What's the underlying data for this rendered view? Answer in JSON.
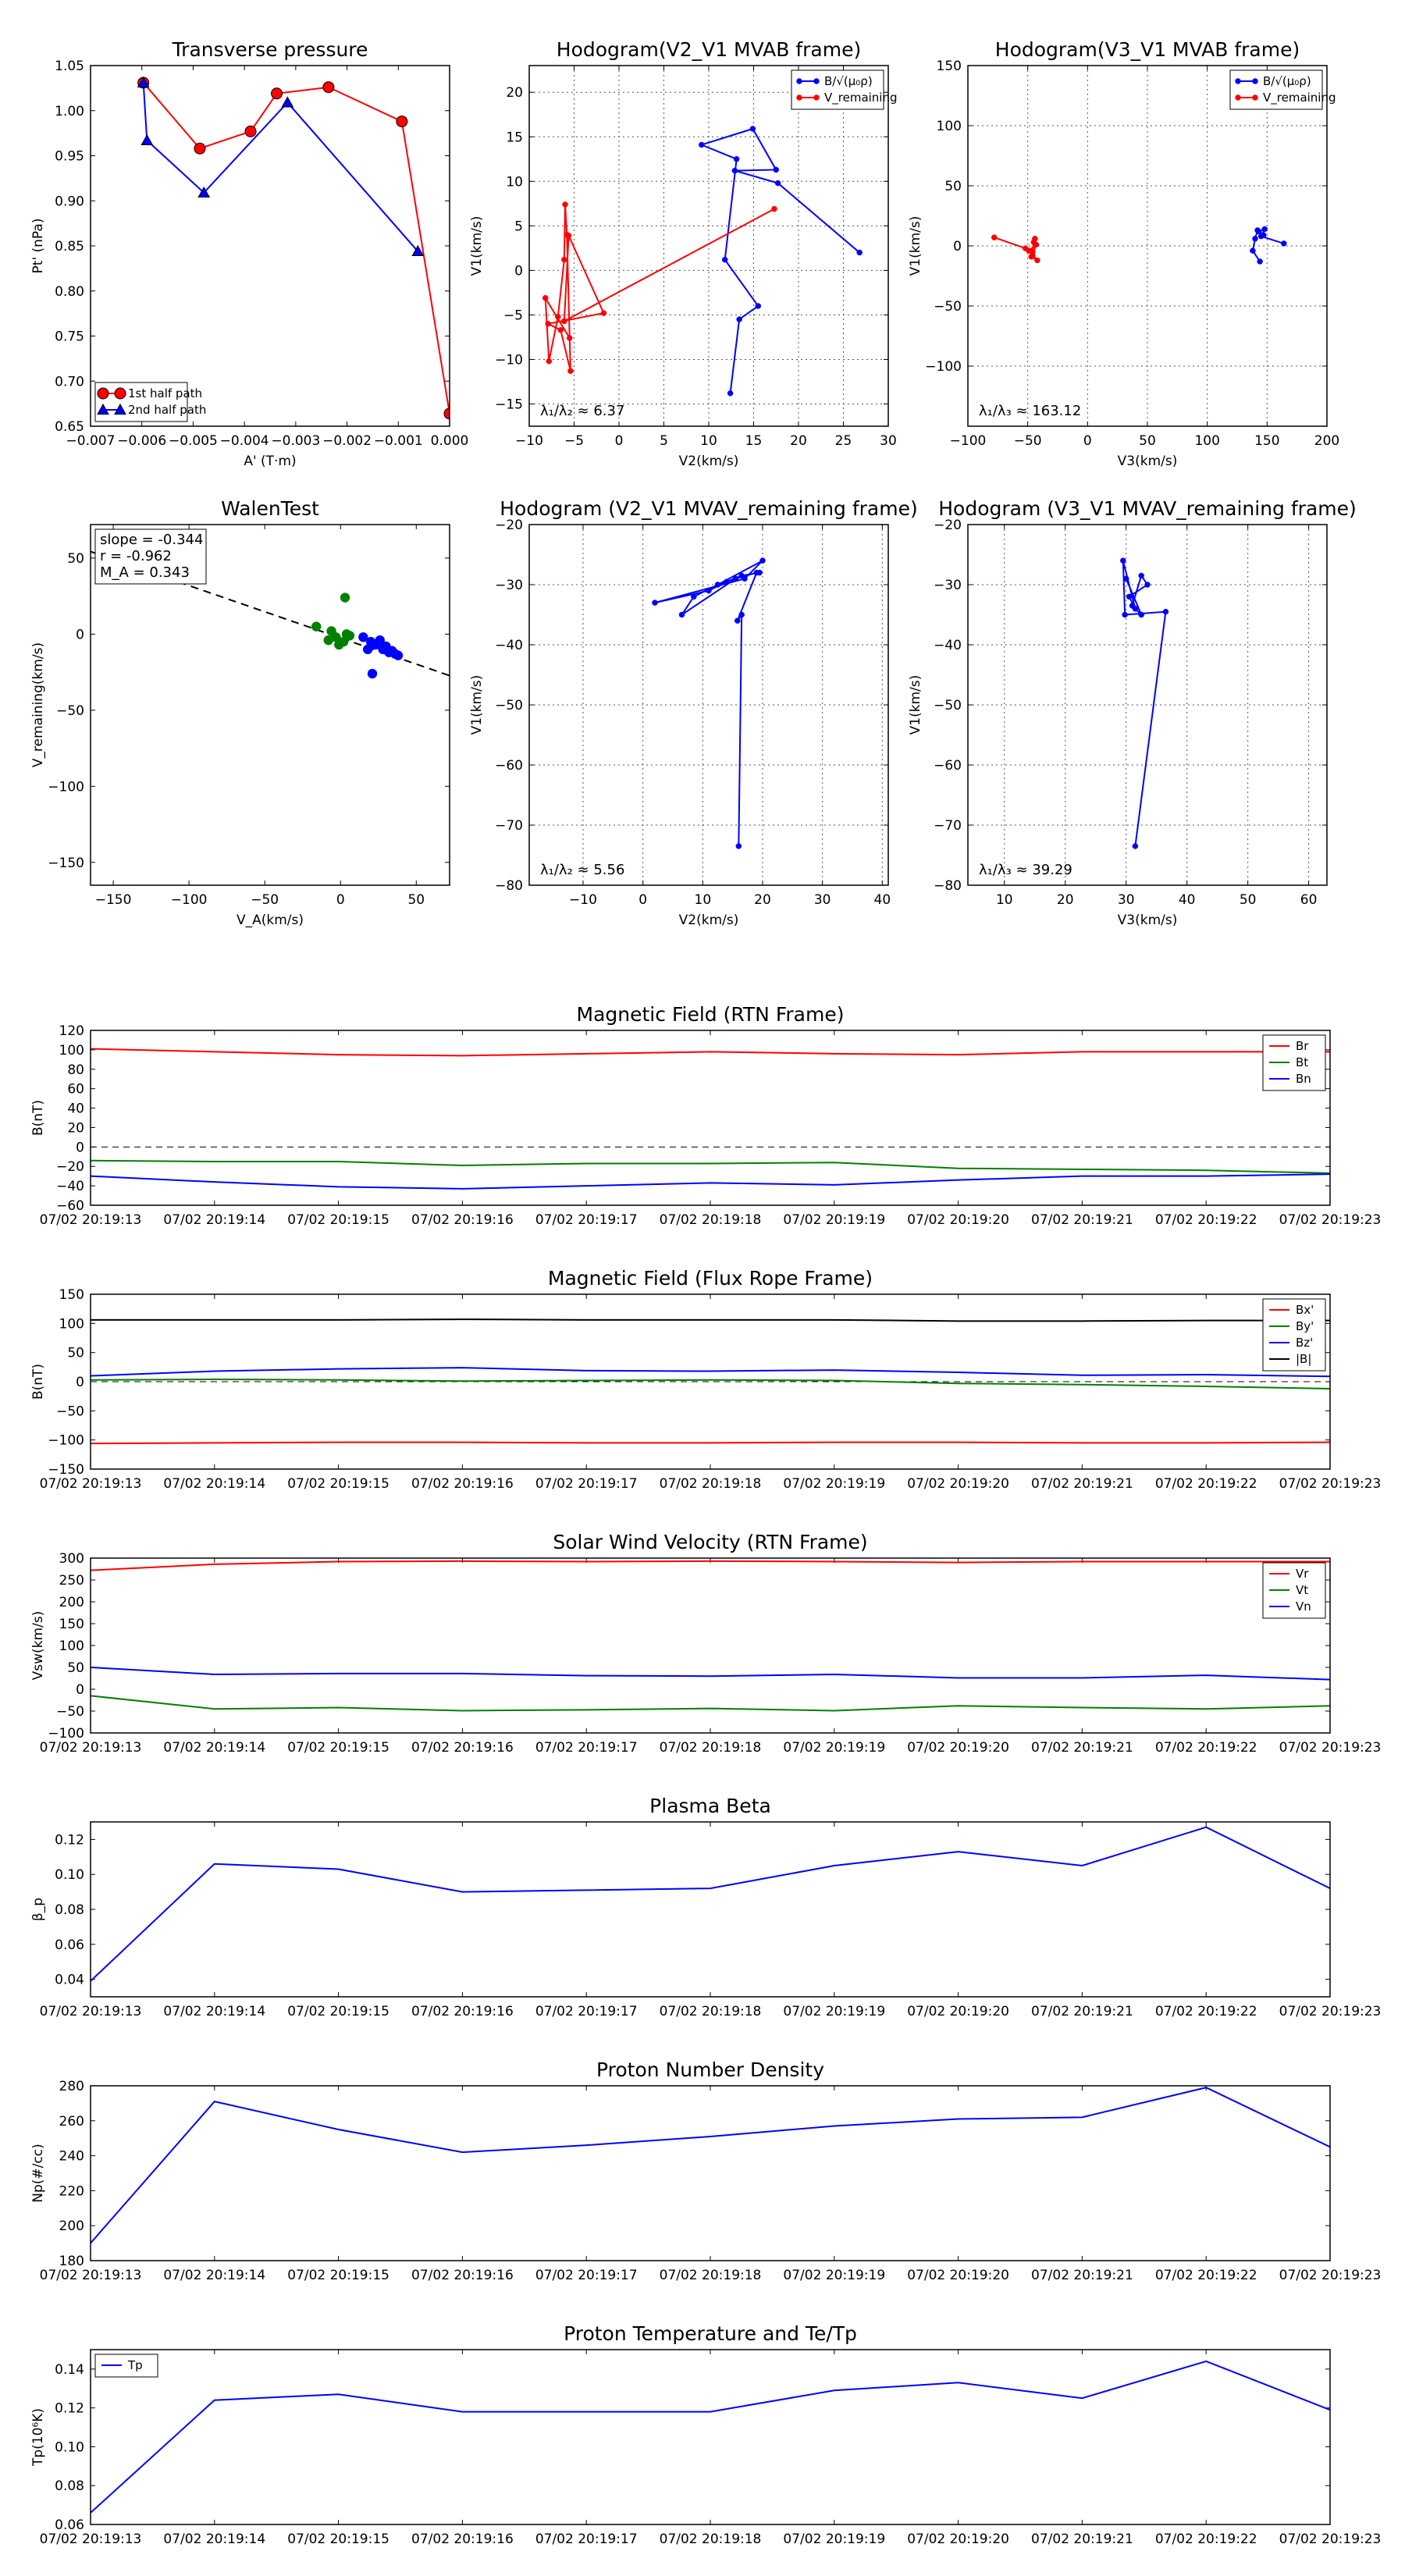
{
  "colors": {
    "red": "#ff0000",
    "blue": "#0000ff",
    "green": "#008000",
    "black": "#000000",
    "grid": "#555555"
  },
  "chart_data": [
    {
      "id": "tp",
      "type": "line",
      "title": "Transverse pressure",
      "xlabel": "A' (T·m)",
      "ylabel": "Pt' (nPa)",
      "xlim": [
        -0.007,
        0.0
      ],
      "ylim": [
        0.65,
        1.05
      ],
      "xticks": [
        -0.007,
        -0.006,
        -0.005,
        -0.004,
        -0.003,
        -0.002,
        -0.001,
        0.0
      ],
      "xtick_labels": [
        "−0.007",
        "−0.006",
        "−0.005",
        "−0.004",
        "−0.003",
        "−0.002",
        "−0.001",
        "0.000"
      ],
      "yticks": [
        0.65,
        0.7,
        0.75,
        0.8,
        0.85,
        0.9,
        0.95,
        1.0,
        1.05
      ],
      "ytick_labels": [
        "0.65",
        "0.70",
        "0.75",
        "0.80",
        "0.85",
        "0.90",
        "0.95",
        "1.00",
        "1.05"
      ],
      "grid": false,
      "legend": "bottom-left",
      "series": [
        {
          "name": "1st half path",
          "color": "#ff0000",
          "marker": "circle",
          "x": [
            -0.00597,
            -0.00487,
            -0.00388,
            -0.00337,
            -0.00236,
            -0.00093,
            0.0
          ],
          "y": [
            1.031,
            0.958,
            0.977,
            1.019,
            1.026,
            0.988,
            0.664
          ]
        },
        {
          "name": "2nd half path",
          "color": "#0000ff",
          "marker": "triangle",
          "x": [
            -0.00597,
            -0.0059,
            -0.00479,
            -0.00316,
            -0.00062
          ],
          "y": [
            1.031,
            0.967,
            0.909,
            1.009,
            0.844
          ]
        }
      ]
    },
    {
      "id": "h21",
      "type": "line",
      "title": "Hodogram(V2_V1 MVAB frame)",
      "xlabel": "V2(km/s)",
      "ylabel": "V1(km/s)",
      "xlim": [
        -10,
        30
      ],
      "ylim": [
        -17.5,
        23
      ],
      "xticks": [
        -10,
        -5,
        0,
        5,
        10,
        15,
        20,
        25,
        30
      ],
      "xtick_labels": [
        "−10",
        "−5",
        "0",
        "5",
        "10",
        "15",
        "20",
        "25",
        "30"
      ],
      "yticks": [
        -15,
        -10,
        -5,
        0,
        5,
        10,
        15,
        20
      ],
      "ytick_labels": [
        "−15",
        "−10",
        "−5",
        "0",
        "5",
        "10",
        "15",
        "20"
      ],
      "grid": true,
      "legend": "top-right",
      "annotation": "λ₁/λ₂ ≈ 6.37",
      "series": [
        {
          "name": "B/√(μ₀ρ)",
          "color": "#0000ff",
          "marker": "dot",
          "x": [
            12.4,
            13.4,
            15.5,
            11.8,
            13.1,
            9.2,
            14.9,
            17.5,
            12.9,
            17.7,
            26.8
          ],
          "y": [
            -13.8,
            -5.5,
            -4.0,
            1.2,
            12.5,
            14.1,
            15.9,
            11.3,
            11.2,
            9.8,
            2.0
          ]
        },
        {
          "name": "V_remaining",
          "color": "#ff0000",
          "marker": "dot",
          "x": [
            -5.5,
            -8.2,
            -7.8,
            -6.8,
            -6.1,
            -6.0,
            -5.8,
            -5.4,
            -6.5,
            -7.9,
            -1.7,
            -5.6,
            -6.1,
            17.3
          ],
          "y": [
            -7.6,
            -3.1,
            -10.2,
            -5.2,
            1.2,
            7.4,
            4.0,
            -11.3,
            -6.7,
            -6.0,
            -4.8,
            3.9,
            -5.7,
            6.9
          ]
        }
      ]
    },
    {
      "id": "h31",
      "type": "line",
      "title": "Hodogram(V3_V1 MVAB frame)",
      "xlabel": "V3(km/s)",
      "ylabel": "V1(km/s)",
      "xlim": [
        -100,
        200
      ],
      "ylim": [
        -150,
        150
      ],
      "xticks": [
        -100,
        -50,
        0,
        50,
        100,
        150,
        200
      ],
      "xtick_labels": [
        "−100",
        "−50",
        "0",
        "50",
        "100",
        "150",
        "200"
      ],
      "yticks": [
        -100,
        -50,
        0,
        50,
        100,
        150
      ],
      "ytick_labels": [
        "−100",
        "−50",
        "0",
        "50",
        "100",
        "150"
      ],
      "grid": true,
      "legend": "top-right",
      "annotation": "λ₁/λ₃ ≈ 163.12",
      "series": [
        {
          "name": "B/√(μ₀ρ)",
          "color": "#0000ff",
          "marker": "dot",
          "x": [
            144,
            138,
            140,
            142,
            147,
            143,
            148,
            145,
            164
          ],
          "y": [
            -13,
            -4,
            6,
            13,
            9,
            12,
            14,
            8,
            2
          ]
        },
        {
          "name": "V_remaining",
          "color": "#ff0000",
          "marker": "dot",
          "x": [
            -78,
            -52,
            -46,
            -45,
            -44,
            -47,
            -42,
            -49,
            -43,
            -46
          ],
          "y": [
            7,
            -2,
            -5,
            3,
            6,
            -9,
            -12,
            -4,
            1,
            -8
          ]
        }
      ]
    },
    {
      "id": "walen",
      "type": "scatter",
      "title": "WalenTest",
      "xlabel": "V_A(km/s)",
      "ylabel": "V_remaining(km/s)",
      "xlim": [
        -165,
        72
      ],
      "ylim": [
        -165,
        72
      ],
      "xticks": [
        -150,
        -100,
        -50,
        0,
        50
      ],
      "xtick_labels": [
        "−150",
        "−100",
        "−50",
        "0",
        "50"
      ],
      "yticks": [
        -150,
        -100,
        -50,
        0,
        50
      ],
      "ytick_labels": [
        "−150",
        "−100",
        "−50",
        "0",
        "50"
      ],
      "grid": false,
      "annotations": [
        "slope = -0.344",
        "r = -0.962",
        "M_A = 0.343"
      ],
      "fit": {
        "slope": -0.344,
        "intercept": -2.5,
        "color": "#000000",
        "dashed": true
      },
      "series": [
        {
          "name": "green",
          "color": "#008000",
          "x": [
            -16,
            -8,
            -6,
            -3,
            -1,
            2,
            4,
            6,
            3
          ],
          "y": [
            5,
            -4,
            2,
            -2,
            -7,
            -5,
            0,
            -1,
            24
          ]
        },
        {
          "name": "blue",
          "color": "#0000ff",
          "x": [
            15,
            18,
            20,
            23,
            26,
            28,
            30,
            32,
            34,
            36,
            38,
            21
          ],
          "y": [
            -2,
            -10,
            -5,
            -7,
            -4,
            -10,
            -8,
            -12,
            -11,
            -13,
            -14,
            -26
          ]
        }
      ]
    },
    {
      "id": "h21r",
      "type": "line",
      "title": "Hodogram (V2_V1 MVAV_remaining frame)",
      "xlabel": "V2(km/s)",
      "ylabel": "V1(km/s)",
      "xlim": [
        -19,
        41
      ],
      "ylim": [
        -80,
        -20
      ],
      "xticks": [
        -10,
        0,
        10,
        20,
        30,
        40
      ],
      "xtick_labels": [
        "−10",
        "0",
        "10",
        "20",
        "30",
        "40"
      ],
      "yticks": [
        -80,
        -70,
        -60,
        -50,
        -40,
        -30,
        -20
      ],
      "ytick_labels": [
        "−80",
        "−70",
        "−60",
        "−50",
        "−40",
        "−30",
        "−20"
      ],
      "grid": true,
      "annotation": "λ₁/λ₂ ≈ 5.56",
      "series": [
        {
          "name": "V_remaining",
          "color": "#0000ff",
          "marker": "dot",
          "x": [
            16.0,
            16.5,
            15.8,
            19.0,
            15.5,
            6.5,
            8.5,
            12.5,
            20.0,
            17.0,
            2.0,
            11.0,
            14.0,
            16.5,
            19.5
          ],
          "y": [
            -73.5,
            -35.0,
            -36.0,
            -28.0,
            -29.0,
            -35.0,
            -32.0,
            -30.0,
            -26.0,
            -29.0,
            -33.0,
            -31.0,
            -29.5,
            -28.5,
            -28.0
          ]
        }
      ]
    },
    {
      "id": "h31r",
      "type": "line",
      "title": "Hodogram (V3_V1 MVAV_remaining frame)",
      "xlabel": "V3(km/s)",
      "ylabel": "V1(km/s)",
      "xlim": [
        4,
        63
      ],
      "ylim": [
        -80,
        -20
      ],
      "xticks": [
        10,
        20,
        30,
        40,
        50,
        60
      ],
      "xtick_labels": [
        "10",
        "20",
        "30",
        "40",
        "50",
        "60"
      ],
      "yticks": [
        -80,
        -70,
        -60,
        -50,
        -40,
        -30,
        -20
      ],
      "ytick_labels": [
        "−80",
        "−70",
        "−60",
        "−50",
        "−40",
        "−30",
        "−20"
      ],
      "grid": true,
      "annotation": "λ₁/λ₃ ≈ 39.29",
      "series": [
        {
          "name": "V_remaining",
          "color": "#0000ff",
          "marker": "dot",
          "x": [
            31.5,
            36.5,
            29.8,
            29.5,
            31.5,
            30.5,
            33.5,
            32.5,
            31.0,
            32.5,
            30.0
          ],
          "y": [
            -73.5,
            -34.5,
            -35.0,
            -26.0,
            -34.0,
            -32.0,
            -30.0,
            -28.5,
            -33.5,
            -35.0,
            -29.0
          ]
        }
      ]
    },
    {
      "id": "mag_rtn",
      "type": "line",
      "title": "Magnetic Field (RTN Frame)",
      "xlabel": "",
      "ylabel": "B(nT)",
      "categories": [
        "07/02 20:19:13",
        "07/02 20:19:14",
        "07/02 20:19:15",
        "07/02 20:19:16",
        "07/02 20:19:17",
        "07/02 20:19:18",
        "07/02 20:19:19",
        "07/02 20:19:20",
        "07/02 20:19:21",
        "07/02 20:19:22",
        "07/02 20:19:23"
      ],
      "ylim": [
        -60,
        120
      ],
      "yticks": [
        -60,
        -40,
        -20,
        0,
        20,
        40,
        60,
        80,
        100,
        120
      ],
      "ytick_labels": [
        "−60",
        "−40",
        "−20",
        "0",
        "20",
        "40",
        "60",
        "80",
        "100",
        "120"
      ],
      "grid": false,
      "zero_line": true,
      "legend": "top-right",
      "series": [
        {
          "name": "Br",
          "color": "#ff0000",
          "values": [
            101,
            98,
            95,
            94,
            96,
            98,
            96,
            95,
            98,
            98,
            98
          ]
        },
        {
          "name": "Bt",
          "color": "#008000",
          "values": [
            -14,
            -15,
            -15,
            -19,
            -17,
            -17,
            -16,
            -22,
            -23,
            -24,
            -27
          ]
        },
        {
          "name": "Bn",
          "color": "#0000ff",
          "values": [
            -30,
            -36,
            -41,
            -43,
            -40,
            -37,
            -39,
            -34,
            -30,
            -30,
            -28
          ]
        }
      ]
    },
    {
      "id": "mag_fr",
      "type": "line",
      "title": "Magnetic Field (Flux Rope Frame)",
      "xlabel": "",
      "ylabel": "B(nT)",
      "categories": [
        "07/02 20:19:13",
        "07/02 20:19:14",
        "07/02 20:19:15",
        "07/02 20:19:16",
        "07/02 20:19:17",
        "07/02 20:19:18",
        "07/02 20:19:19",
        "07/02 20:19:20",
        "07/02 20:19:21",
        "07/02 20:19:22",
        "07/02 20:19:23"
      ],
      "ylim": [
        -150,
        150
      ],
      "yticks": [
        -150,
        -100,
        -50,
        0,
        50,
        100,
        150
      ],
      "ytick_labels": [
        "−150",
        "−100",
        "−50",
        "0",
        "50",
        "100",
        "150"
      ],
      "grid": false,
      "zero_line": true,
      "legend": "top-right",
      "series": [
        {
          "name": "Bx'",
          "color": "#ff0000",
          "values": [
            -106,
            -105,
            -104,
            -104,
            -105,
            -105,
            -104,
            -104,
            -105,
            -105,
            -104
          ]
        },
        {
          "name": "By'",
          "color": "#008000",
          "values": [
            3,
            4,
            3,
            1,
            2,
            3,
            2,
            -3,
            -5,
            -8,
            -12
          ]
        },
        {
          "name": "Bz'",
          "color": "#0000ff",
          "values": [
            10,
            18,
            22,
            24,
            19,
            18,
            20,
            16,
            11,
            12,
            9
          ]
        },
        {
          "name": "|B|",
          "color": "#000000",
          "values": [
            106,
            106,
            106,
            107,
            106,
            106,
            106,
            104,
            104,
            105,
            105
          ]
        }
      ]
    },
    {
      "id": "vsw",
      "type": "line",
      "title": "Solar Wind Velocity (RTN Frame)",
      "xlabel": "",
      "ylabel": "Vsw(km/s)",
      "categories": [
        "07/02 20:19:13",
        "07/02 20:19:14",
        "07/02 20:19:15",
        "07/02 20:19:16",
        "07/02 20:19:17",
        "07/02 20:19:18",
        "07/02 20:19:19",
        "07/02 20:19:20",
        "07/02 20:19:21",
        "07/02 20:19:22",
        "07/02 20:19:23"
      ],
      "ylim": [
        -100,
        300
      ],
      "yticks": [
        -100,
        -50,
        0,
        50,
        100,
        150,
        200,
        250,
        300
      ],
      "ytick_labels": [
        "−100",
        "−50",
        "0",
        "50",
        "100",
        "150",
        "200",
        "250",
        "300"
      ],
      "grid": false,
      "legend": "top-right",
      "series": [
        {
          "name": "Vr",
          "color": "#ff0000",
          "values": [
            272,
            286,
            292,
            293,
            292,
            293,
            292,
            290,
            292,
            292,
            292
          ]
        },
        {
          "name": "Vt",
          "color": "#008000",
          "values": [
            -15,
            -45,
            -42,
            -49,
            -47,
            -44,
            -49,
            -38,
            -42,
            -45,
            -38
          ]
        },
        {
          "name": "Vn",
          "color": "#0000ff",
          "values": [
            50,
            34,
            36,
            36,
            31,
            30,
            34,
            26,
            26,
            32,
            22
          ]
        }
      ]
    },
    {
      "id": "beta",
      "type": "line",
      "title": "Plasma Beta",
      "xlabel": "",
      "ylabel": "β_p",
      "categories": [
        "07/02 20:19:13",
        "07/02 20:19:14",
        "07/02 20:19:15",
        "07/02 20:19:16",
        "07/02 20:19:17",
        "07/02 20:19:18",
        "07/02 20:19:19",
        "07/02 20:19:20",
        "07/02 20:19:21",
        "07/02 20:19:22",
        "07/02 20:19:23"
      ],
      "ylim": [
        0.03,
        0.13
      ],
      "yticks": [
        0.04,
        0.06,
        0.08,
        0.1,
        0.12
      ],
      "ytick_labels": [
        "0.04",
        "0.06",
        "0.08",
        "0.10",
        "0.12"
      ],
      "grid": false,
      "series": [
        {
          "name": "beta",
          "color": "#0000ff",
          "values": [
            0.039,
            0.106,
            0.103,
            0.09,
            0.091,
            0.092,
            0.105,
            0.113,
            0.105,
            0.127,
            0.092
          ]
        }
      ]
    },
    {
      "id": "np",
      "type": "line",
      "title": "Proton Number Density",
      "xlabel": "",
      "ylabel": "Np(#/cc)",
      "categories": [
        "07/02 20:19:13",
        "07/02 20:19:14",
        "07/02 20:19:15",
        "07/02 20:19:16",
        "07/02 20:19:17",
        "07/02 20:19:18",
        "07/02 20:19:19",
        "07/02 20:19:20",
        "07/02 20:19:21",
        "07/02 20:19:22",
        "07/02 20:19:23"
      ],
      "ylim": [
        180,
        280
      ],
      "yticks": [
        180,
        200,
        220,
        240,
        260,
        280
      ],
      "ytick_labels": [
        "180",
        "200",
        "220",
        "240",
        "260",
        "280"
      ],
      "grid": false,
      "series": [
        {
          "name": "Np",
          "color": "#0000ff",
          "values": [
            190,
            271,
            255,
            242,
            246,
            251,
            257,
            261,
            262,
            279,
            245
          ]
        }
      ]
    },
    {
      "id": "tpt",
      "type": "line",
      "title": "Proton Temperature and Te/Tp",
      "xlabel": "",
      "ylabel": "Tp(10⁶K)",
      "categories": [
        "07/02 20:19:13",
        "07/02 20:19:14",
        "07/02 20:19:15",
        "07/02 20:19:16",
        "07/02 20:19:17",
        "07/02 20:19:18",
        "07/02 20:19:19",
        "07/02 20:19:20",
        "07/02 20:19:21",
        "07/02 20:19:22",
        "07/02 20:19:23"
      ],
      "ylim": [
        0.06,
        0.15
      ],
      "yticks": [
        0.06,
        0.08,
        0.1,
        0.12,
        0.14
      ],
      "ytick_labels": [
        "0.06",
        "0.08",
        "0.10",
        "0.12",
        "0.14"
      ],
      "grid": false,
      "legend": "top-left",
      "series": [
        {
          "name": "Tp",
          "color": "#0000ff",
          "values": [
            0.066,
            0.124,
            0.127,
            0.118,
            0.118,
            0.118,
            0.129,
            0.133,
            0.125,
            0.144,
            0.119
          ]
        }
      ]
    }
  ]
}
